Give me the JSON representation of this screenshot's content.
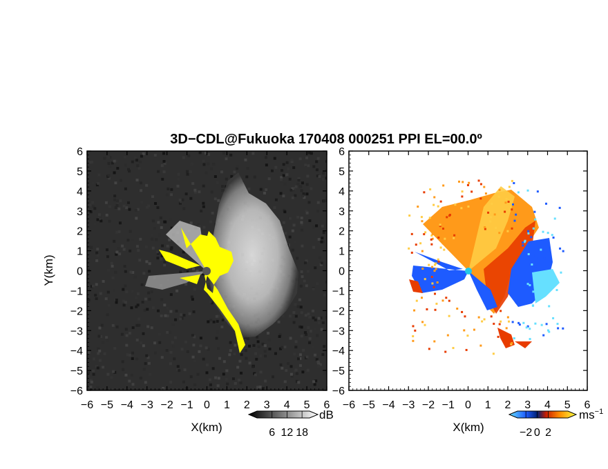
{
  "figure": {
    "title": "3D−CDL@Fukuoka 170408 000251 PPI EL=00.0º"
  },
  "chart_data": [
    {
      "type": "heatmap",
      "panel": "reflectivity",
      "xlabel": "X(km)",
      "ylabel": "Y(km)",
      "xlim": [
        -6,
        6
      ],
      "ylim": [
        -6,
        6
      ],
      "xticks": [
        "−6",
        "−5",
        "−4",
        "−3",
        "−2",
        "−1",
        "0",
        "1",
        "2",
        "3",
        "4",
        "5",
        "6"
      ],
      "yticks": [
        "6",
        "5",
        "4",
        "3",
        "2",
        "1",
        "0",
        "−1",
        "−2",
        "−3",
        "−4",
        "−5",
        "−6"
      ],
      "colorbar": {
        "unit": "dB",
        "ticks": [
          "6",
          "12",
          "18"
        ],
        "range": [
          0,
          21
        ]
      },
      "colors": {
        "background": "#2e2e2e",
        "saturated": "#ffff00",
        "site": "#555555"
      }
    },
    {
      "type": "heatmap",
      "panel": "radial_velocity",
      "xlabel": "X(km)",
      "xlim": [
        -6,
        6
      ],
      "ylim": [
        -6,
        6
      ],
      "xticks": [
        "−6",
        "−5",
        "−4",
        "−3",
        "−2",
        "−1",
        "0",
        "1",
        "2",
        "3",
        "4",
        "5",
        "6"
      ],
      "yticks": [
        "6",
        "5",
        "4",
        "3",
        "2",
        "1",
        "0",
        "−1",
        "−2",
        "−3",
        "−4",
        "−5",
        "−6"
      ],
      "colorbar": {
        "unit": "ms",
        "unit_exp": "−1",
        "ticks": [
          "−2",
          "0",
          "2"
        ],
        "range": [
          -3.5,
          5.5
        ]
      },
      "colors": {
        "background": "#ffffff",
        "site": "#22c8e8",
        "negative": "#1e5bff",
        "positive": "#ff8c00"
      }
    }
  ]
}
